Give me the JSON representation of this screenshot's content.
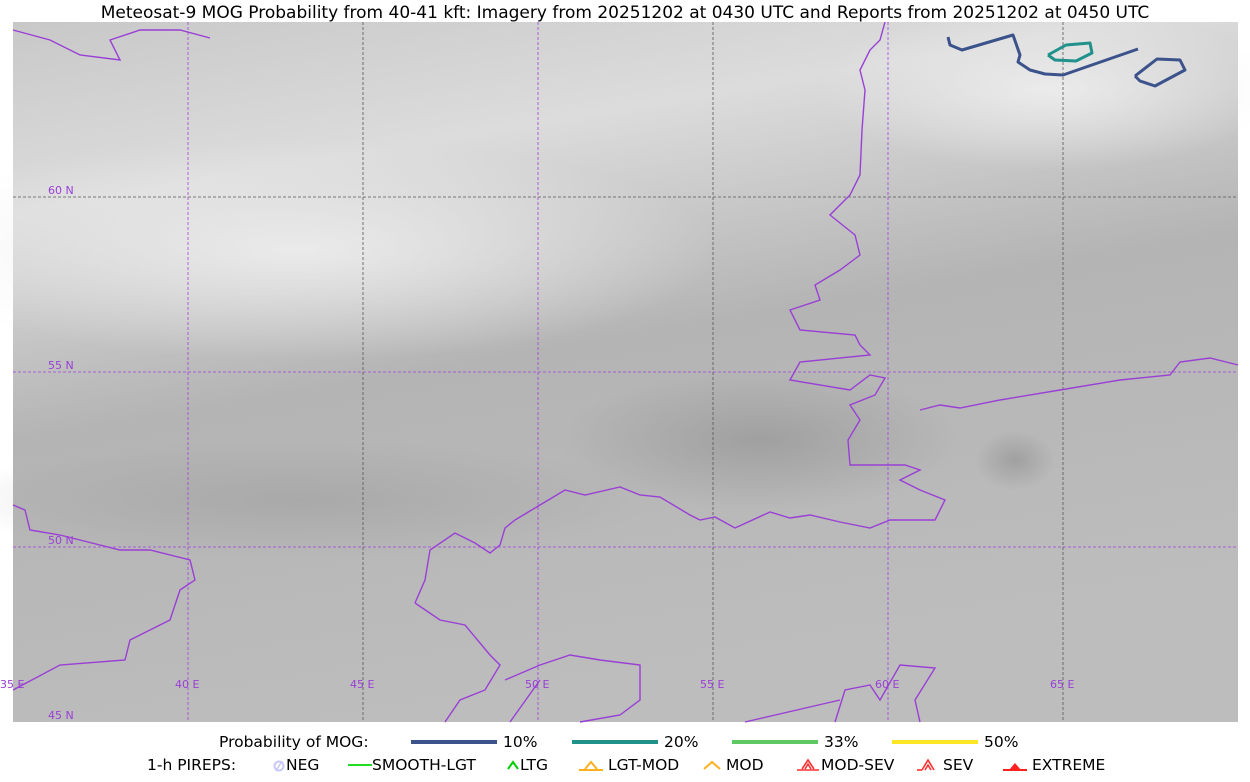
{
  "title": "Meteosat-9 MOG Probability from 40-41 kft: Imagery from 20251202 at 0430 UTC and Reports from 20251202 at 0450 UTC",
  "map": {
    "lat_labels": [
      "60 N",
      "55 N",
      "50 N",
      "45 N"
    ],
    "lon_labels": [
      "35 E",
      "40 E",
      "45 E",
      "50 E",
      "55 E",
      "60 E",
      "65 E"
    ],
    "grid_color": "#a040e0",
    "coastline_color": "#9a3fd6"
  },
  "legend": {
    "mog_label": "Probability of MOG:",
    "mog_levels": [
      {
        "label": "10%",
        "color": "#3b528b"
      },
      {
        "label": "20%",
        "color": "#21918c"
      },
      {
        "label": "33%",
        "color": "#5ec962"
      },
      {
        "label": "50%",
        "color": "#fde725"
      }
    ],
    "pirep_label": "1-h PIREPS:",
    "pireps": [
      {
        "label": "NEG",
        "icon": "neg-circle-icon",
        "color": "#c8c8f8"
      },
      {
        "label": "SMOOTH-LGT",
        "icon": "line-icon",
        "color": "#22dd22"
      },
      {
        "label": "LTG",
        "icon": "caret-icon",
        "color": "#00cc00"
      },
      {
        "label": "LGT-MOD",
        "icon": "caret-bar-icon",
        "color": "#ffb020"
      },
      {
        "label": "MOD",
        "icon": "caret-icon",
        "color": "#ffb020"
      },
      {
        "label": "MOD-SEV",
        "icon": "double-caret-bar-icon",
        "color": "#ff3030"
      },
      {
        "label": "SEV",
        "icon": "double-caret-icon",
        "color": "#ff3030"
      },
      {
        "label": "EXTREME",
        "icon": "filled-triangle-icon",
        "color": "#ff2020"
      }
    ]
  }
}
